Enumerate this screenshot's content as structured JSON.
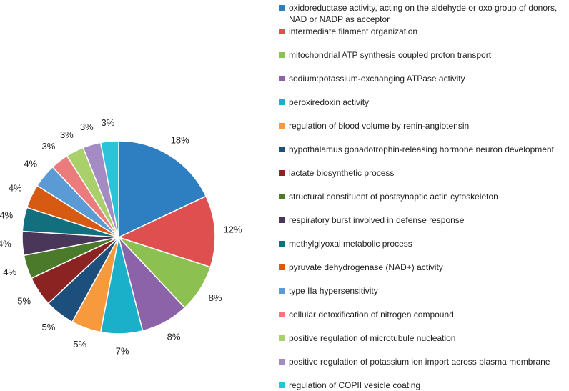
{
  "chart_data": {
    "type": "pie",
    "title": "",
    "categories": [
      "oxidoreductase activity, acting on the aldehyde or oxo group of donors, NAD or NADP as acceptor",
      "intermediate filament organization",
      "mitochondrial ATP synthesis coupled proton transport",
      "sodium:potassium-exchanging ATPase activity",
      "peroxiredoxin activity",
      "regulation of blood volume by renin-angiotensin",
      "hypothalamus gonadotrophin-releasing hormone neuron development",
      "lactate biosynthetic process",
      "structural constituent of postsynaptic actin cytoskeleton",
      "respiratory burst involved in defense response",
      "methylglyoxal metabolic process",
      "pyruvate dehydrogenase (NAD+) activity",
      "type IIa hypersensitivity",
      "cellular detoxification of nitrogen compound",
      "positive regulation of microtubule nucleation",
      "positive regulation of potassium ion import across plasma membrane",
      "regulation of COPII vesicle coating"
    ],
    "values": [
      18,
      12,
      8,
      8,
      7,
      5,
      5,
      5,
      4,
      4,
      4,
      4,
      4,
      3,
      3,
      3,
      3
    ],
    "labels": [
      "18%",
      "12%",
      "8%",
      "8%",
      "7%",
      "5%",
      "5%",
      "5%",
      "4%",
      "4%",
      "4%",
      "4%",
      "4%",
      "3%",
      "3%",
      "3%",
      "3%"
    ],
    "colors": [
      "#2e7fc2",
      "#e04f4f",
      "#8cc152",
      "#8c62a8",
      "#1ab0c9",
      "#f79a3e",
      "#1d4f7c",
      "#8b2323",
      "#4a7a2a",
      "#4a3658",
      "#12707e",
      "#d75a12",
      "#5b9bd5",
      "#ec7b7b",
      "#a9d06a",
      "#a48bc3",
      "#2bc3d9"
    ],
    "start_angle": "12 o'clock",
    "direction": "clockwise",
    "legend_position": "right"
  }
}
